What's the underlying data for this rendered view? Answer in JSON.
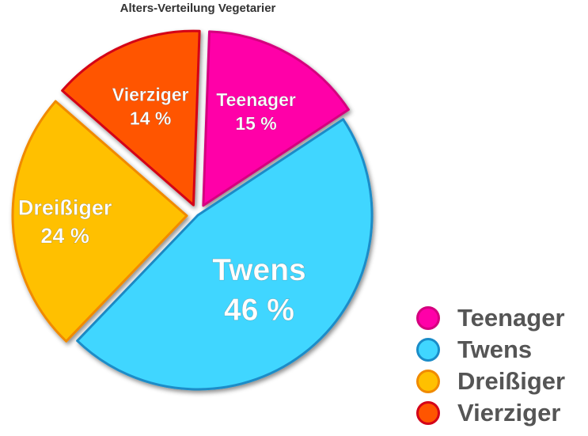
{
  "chart_data": {
    "type": "pie",
    "title": "Alters-Verteilung Vegetarier",
    "slices": [
      {
        "label": "Teenager",
        "value": 15,
        "value_label": "15 %",
        "color": "#FF00A8",
        "border": "#D4007E",
        "exploded": true
      },
      {
        "label": "Twens",
        "value": 46,
        "value_label": "46 %",
        "color": "#40D6FF",
        "border": "#1A8CC8",
        "exploded": false
      },
      {
        "label": "Dreißiger",
        "value": 24,
        "value_label": "24 %",
        "color": "#FFC000",
        "border": "#F08A00",
        "exploded": true
      },
      {
        "label": "Vierziger",
        "value": 14,
        "value_label": "14 %",
        "color": "#FF5500",
        "border": "#D40018",
        "exploded": true
      }
    ],
    "legend": {
      "position": "bottom-right"
    }
  }
}
